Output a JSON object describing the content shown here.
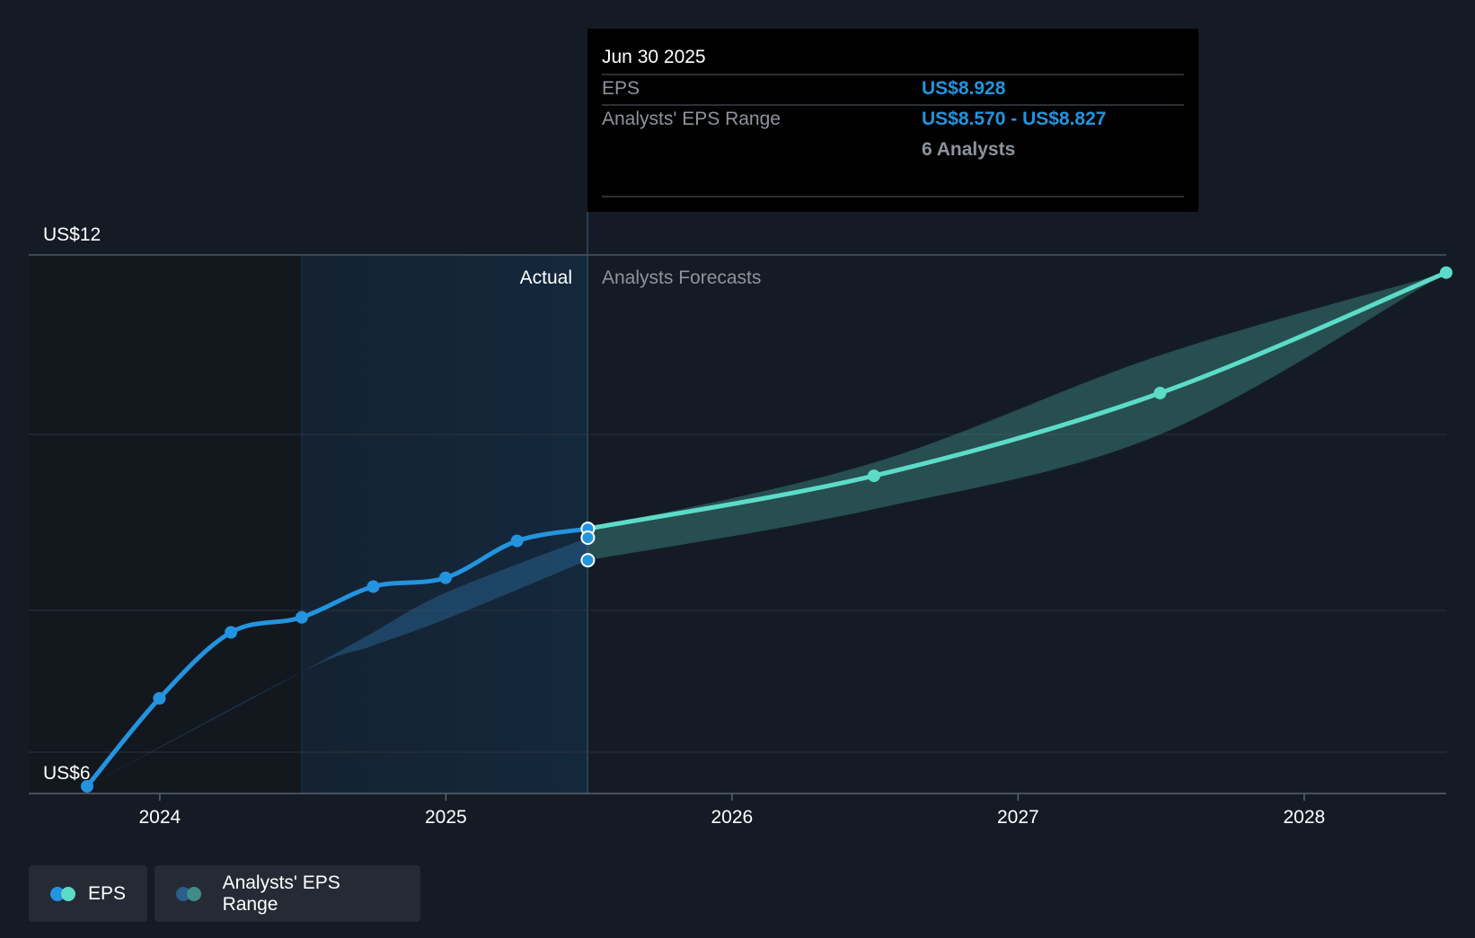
{
  "chart_data": {
    "type": "line",
    "y_labels": [
      "US$12",
      "US$6"
    ],
    "ylim": [
      6,
      12
    ],
    "x_tick_labels": [
      "2024",
      "2025",
      "2026",
      "2027",
      "2028"
    ],
    "section_labels": {
      "actual": "Actual",
      "forecast": "Analysts Forecasts"
    },
    "forecast_start": "2025-06-30",
    "series": [
      {
        "name": "EPS",
        "points": [
          [
            "2023-09-30",
            6.0
          ],
          [
            "2023-12-31",
            7.0
          ],
          [
            "2024-03-31",
            7.75
          ],
          [
            "2024-06-30",
            7.92
          ],
          [
            "2024-09-30",
            8.27
          ],
          [
            "2024-12-31",
            8.37
          ],
          [
            "2025-03-31",
            8.79
          ],
          [
            "2025-06-30",
            8.928
          ]
        ],
        "color": "#2394df"
      },
      {
        "name": "EPS",
        "points": [
          [
            "2025-06-30",
            8.928
          ],
          [
            "2026-06-30",
            9.53
          ],
          [
            "2027-06-30",
            10.47
          ],
          [
            "2028-06-30",
            11.84
          ]
        ],
        "color": "#5cdcc8"
      }
    ],
    "range_series": {
      "name": "Analysts' EPS Range",
      "actual": [
        [
          "2023-09-30",
          6.0,
          6.0
        ],
        [
          "2024-06-30",
          7.3,
          7.3
        ],
        [
          "2024-09-30",
          7.6,
          7.75
        ],
        [
          "2024-12-31",
          7.9,
          8.2
        ],
        [
          "2025-06-30",
          8.57,
          8.827
        ]
      ],
      "forecast": [
        [
          "2025-06-30",
          8.57,
          8.928
        ],
        [
          "2026-06-30",
          9.15,
          9.68
        ],
        [
          "2027-06-30",
          10.0,
          10.9
        ],
        [
          "2028-06-30",
          11.84,
          11.84
        ]
      ]
    },
    "grid": true,
    "legend_position": "bottom-left"
  },
  "tooltip": {
    "date": "Jun 30 2025",
    "rows": [
      {
        "label": "EPS",
        "value": "US$8.928"
      },
      {
        "label": "Analysts' EPS Range",
        "value": "US$8.570 - US$8.827"
      }
    ],
    "analysts_count": "6 Analysts"
  },
  "legend": {
    "items": [
      {
        "label": "EPS",
        "colors": [
          "#2394df",
          "#5cdcc8"
        ]
      },
      {
        "label": "Analysts' EPS Range",
        "colors": [
          "#2a5f8a",
          "#3f8c86"
        ]
      }
    ]
  },
  "colors": {
    "background": "#151b24",
    "actual_band": "#14283c",
    "eps_actual": "#2394df",
    "eps_forecast": "#5cdcc8",
    "tooltip_value": "#2394df"
  }
}
